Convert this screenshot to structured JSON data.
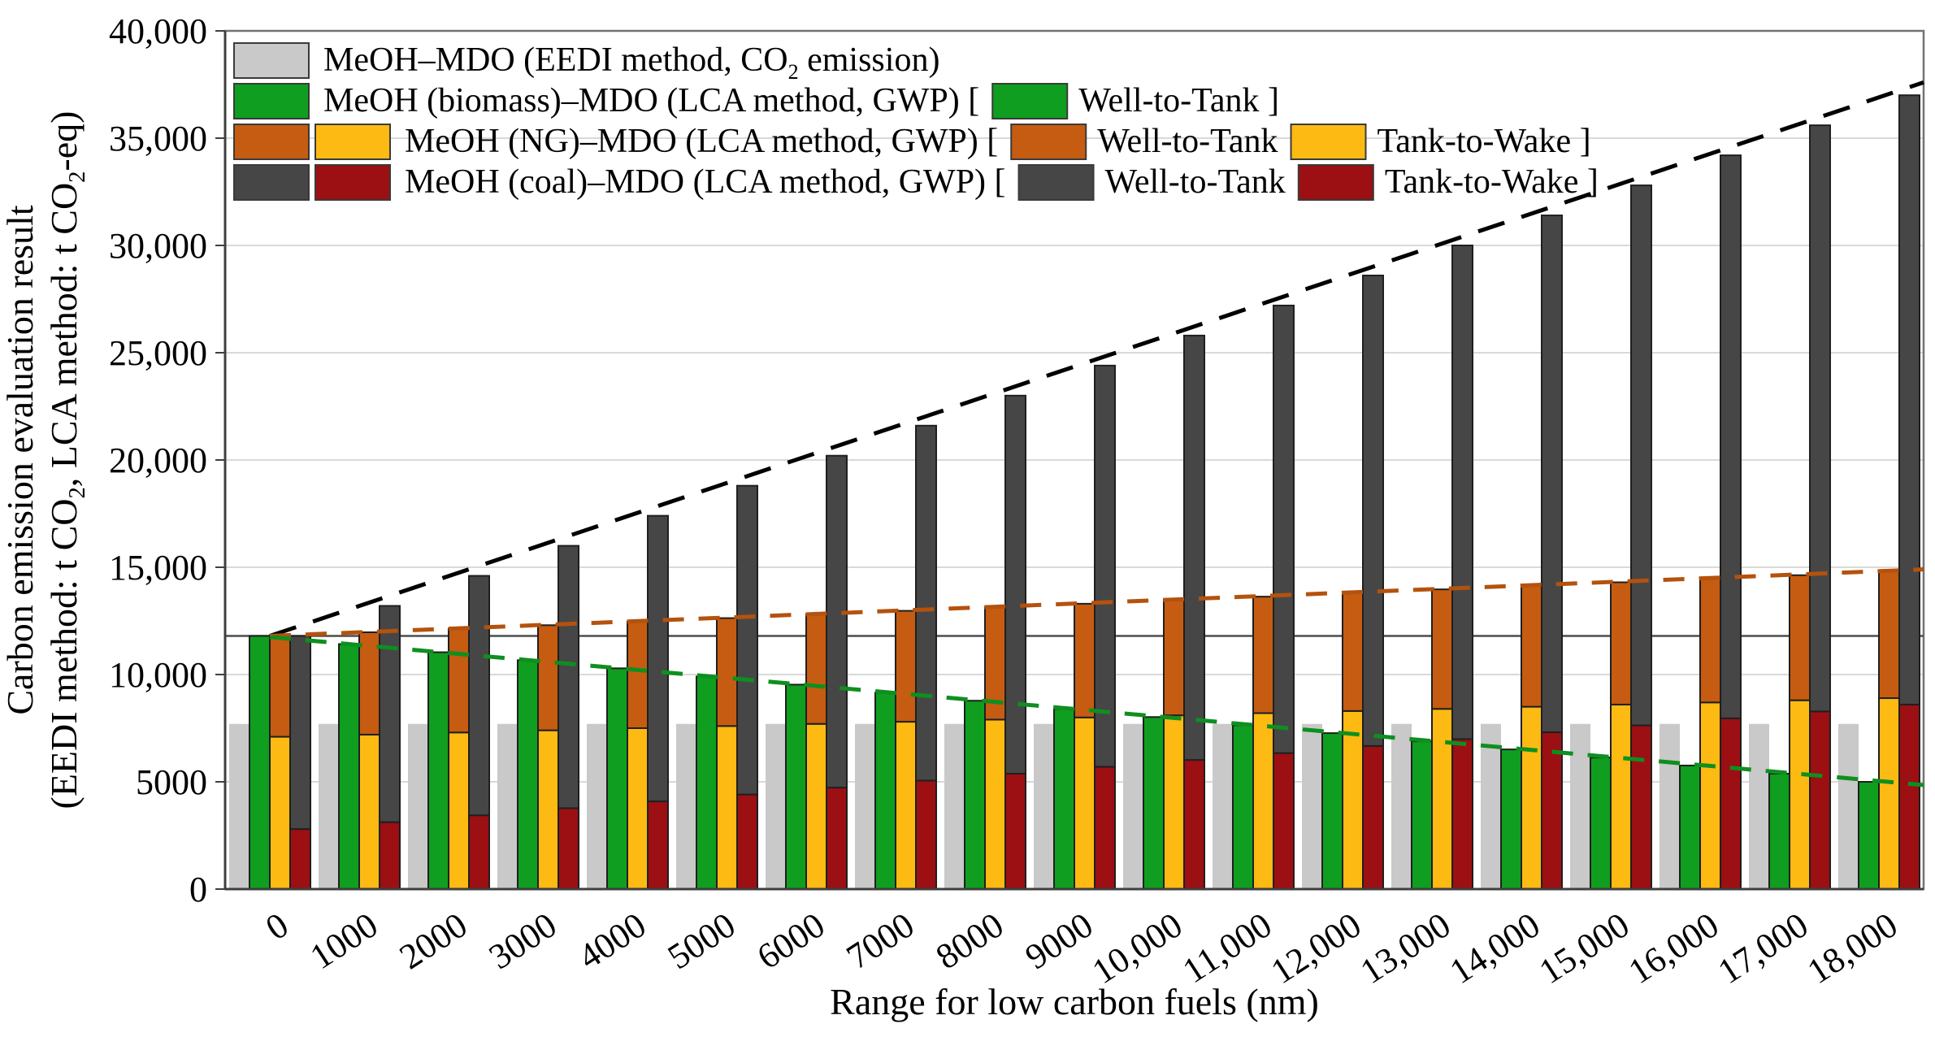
{
  "figure": {
    "background": "#ffffff"
  },
  "chart_data": {
    "type": "bar",
    "xlabel": "Range for low carbon fuels (nm)",
    "ylabel_lines": [
      "Carbon emission evaluation result",
      "(EEDI method: t CO~2~, LCA method: t CO~2~-eq)"
    ],
    "ylim": [
      0,
      40000
    ],
    "grid": "horizontal",
    "legend_position": "top-left-inside",
    "y_ticks": [
      {
        "value": 0,
        "label": "0"
      },
      {
        "value": 5000,
        "label": "5000"
      },
      {
        "value": 10000,
        "label": "10,000"
      },
      {
        "value": 15000,
        "label": "15,000"
      },
      {
        "value": 20000,
        "label": "20,000"
      },
      {
        "value": 25000,
        "label": "25,000"
      },
      {
        "value": 30000,
        "label": "30,000"
      },
      {
        "value": 35000,
        "label": "35,000"
      },
      {
        "value": 40000,
        "label": "40,000"
      }
    ],
    "categories": [
      "0",
      "1000",
      "2000",
      "3000",
      "4000",
      "5000",
      "6000",
      "7000",
      "8000",
      "9000",
      "10,000",
      "11,000",
      "12,000",
      "13,000",
      "14,000",
      "15,000",
      "16,000",
      "17,000",
      "18,000"
    ],
    "ranges_nm": [
      0,
      1000,
      2000,
      3000,
      4000,
      5000,
      6000,
      7000,
      8000,
      9000,
      10000,
      11000,
      12000,
      13000,
      14000,
      15000,
      16000,
      17000,
      18000
    ],
    "stack_order": [
      "eedi",
      "biomass",
      "ng",
      "coal"
    ],
    "series": [
      {
        "id": "eedi",
        "stack": "eedi",
        "name": "MeOH-MDO EEDI CO2 emission",
        "color": "#c9c9c9",
        "outlined": false,
        "values": [
          7700,
          7700,
          7700,
          7700,
          7700,
          7700,
          7700,
          7700,
          7700,
          7700,
          7700,
          7700,
          7700,
          7700,
          7700,
          7700,
          7700,
          7700,
          7700
        ]
      },
      {
        "id": "biomass_wtt",
        "stack": "biomass",
        "name": "MeOH (biomass) Well-to-Tank",
        "color": "#0f9e1f",
        "outlined": true,
        "values": [
          11800,
          11420,
          11040,
          10670,
          10290,
          9910,
          9530,
          9160,
          8780,
          8400,
          8020,
          7640,
          7270,
          6890,
          6510,
          6130,
          5760,
          5380,
          5000
        ]
      },
      {
        "id": "ng_ttw",
        "stack": "ng",
        "name": "MeOH (NG) Tank-to-Wake",
        "color": "#fdba12",
        "outlined": true,
        "values": [
          7100,
          7200,
          7300,
          7400,
          7500,
          7600,
          7700,
          7800,
          7900,
          8000,
          8100,
          8200,
          8300,
          8400,
          8500,
          8600,
          8700,
          8800,
          8900
        ]
      },
      {
        "id": "ng_wtt",
        "stack": "ng",
        "name": "MeOH (NG) Well-to-Tank",
        "color": "#c55c11",
        "outlined": true,
        "values": [
          4700,
          4770,
          4830,
          4900,
          4970,
          5030,
          5100,
          5170,
          5230,
          5300,
          5370,
          5430,
          5500,
          5570,
          5630,
          5700,
          5770,
          5830,
          5900
        ]
      },
      {
        "id": "coal_ttw",
        "stack": "coal",
        "name": "MeOH (coal) Tank-to-Wake",
        "color": "#9c0f13",
        "outlined": true,
        "values": [
          2800,
          3120,
          3440,
          3770,
          4090,
          4410,
          4730,
          5060,
          5380,
          5700,
          6020,
          6340,
          6670,
          6990,
          7310,
          7630,
          7960,
          8280,
          8600
        ]
      },
      {
        "id": "coal_wtt",
        "stack": "coal",
        "name": "MeOH (coal) Well-to-Tank",
        "color": "#464646",
        "outlined": true,
        "values": [
          9000,
          10080,
          11160,
          12230,
          13310,
          14390,
          15470,
          16540,
          17620,
          18700,
          19780,
          20860,
          21930,
          23010,
          24090,
          25170,
          26240,
          27320,
          28400
        ]
      }
    ],
    "reference_line": {
      "value": 11800,
      "color": "#4d4d4d"
    },
    "trend_lines": [
      {
        "id": "coal-trend",
        "color": "#000000",
        "v_start": 11800,
        "v_end": 37600,
        "dash": "34 22"
      },
      {
        "id": "ng-trend",
        "color": "#b4520e",
        "v_start": 11800,
        "v_end": 14900,
        "dash": "26 18"
      },
      {
        "id": "biomass-trend",
        "color": "#0e8f20",
        "v_start": 11750,
        "v_end": 4850,
        "dash": "26 18"
      }
    ],
    "legend_rows": [
      {
        "lead_swatches": [
          "#c9c9c9"
        ],
        "segments": [
          {
            "text": "MeOH–MDO (EEDI method, CO~2~ emission)"
          }
        ]
      },
      {
        "lead_swatches": [
          "#0f9e1f"
        ],
        "segments": [
          {
            "text": "MeOH (biomass)–MDO (LCA method, GWP) ["
          },
          {
            "swatch": "#0f9e1f"
          },
          {
            "text": "Well-to-Tank ]"
          }
        ]
      },
      {
        "lead_swatches": [
          "#c55c11",
          "#fdba12"
        ],
        "segments": [
          {
            "text": "MeOH (NG)–MDO (LCA method, GWP)  ["
          },
          {
            "swatch": "#c55c11"
          },
          {
            "text": "Well-to-Tank"
          },
          {
            "swatch": "#fdba12"
          },
          {
            "text": "Tank-to-Wake ]"
          }
        ]
      },
      {
        "lead_swatches": [
          "#464646",
          "#9c0f13"
        ],
        "segments": [
          {
            "text": "MeOH (coal)–MDO (LCA method, GWP) ["
          },
          {
            "swatch": "#464646"
          },
          {
            "text": "Well-to-Tank"
          },
          {
            "swatch": "#9c0f13"
          },
          {
            "text": "Tank-to-Wake ]"
          }
        ]
      }
    ],
    "style": {
      "gridline_color": "#d9d9d9",
      "frame_color": "#737373",
      "axis_color": "#3f3f3f",
      "bar_outline": "#1f1f1f",
      "swatch_outline": "#3a3a3a"
    }
  }
}
